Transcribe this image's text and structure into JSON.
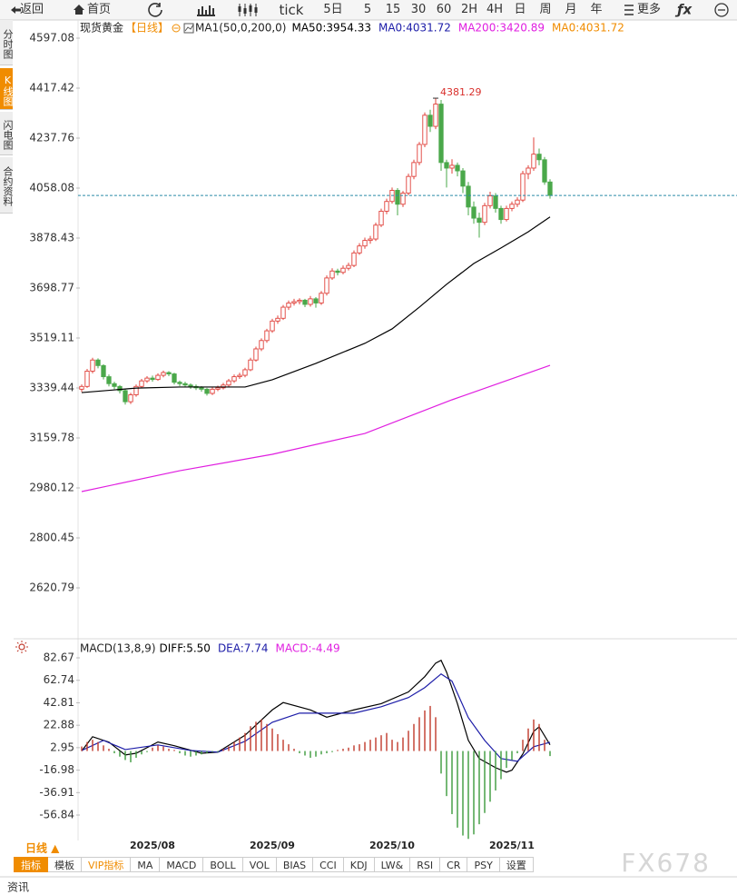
{
  "toolbar": {
    "back": "返回",
    "home": "首页",
    "periods": [
      "tick",
      "5日",
      "5",
      "15",
      "30",
      "60",
      "2H",
      "4H",
      "日",
      "周",
      "月",
      "年"
    ],
    "more": "更多"
  },
  "side_tabs": [
    "分时图",
    "K线图",
    "闪电图",
    "合约资料"
  ],
  "chart_data": [
    {
      "type": "candlestick",
      "title": "现货黄金",
      "period": "【日线】",
      "indicator": "MA1(50,0,200,0)",
      "categories": [
        null,
        null,
        null,
        null,
        null,
        null,
        null,
        null,
        null,
        null,
        null,
        null,
        null,
        "2025/08",
        null,
        null,
        null,
        null,
        null,
        null,
        null,
        null,
        null,
        null,
        null,
        null,
        null,
        null,
        null,
        null,
        null,
        null,
        null,
        null,
        null,
        "2025/09",
        null,
        null,
        null,
        null,
        null,
        null,
        null,
        null,
        null,
        null,
        null,
        null,
        null,
        null,
        null,
        null,
        null,
        null,
        null,
        null,
        null,
        "2025/10",
        null,
        null,
        null,
        null,
        null,
        null,
        null,
        null,
        null,
        null,
        null,
        null,
        null,
        null,
        null,
        null,
        null,
        null,
        null,
        null,
        null,
        "2025/11",
        null,
        null,
        null,
        null,
        null,
        null,
        null
      ],
      "ohlc": [
        [
          3335,
          3352,
          3325,
          3345
        ],
        [
          3345,
          3408,
          3340,
          3400
        ],
        [
          3400,
          3448,
          3392,
          3440
        ],
        [
          3440,
          3446,
          3410,
          3420
        ],
        [
          3420,
          3425,
          3370,
          3380
        ],
        [
          3380,
          3388,
          3345,
          3355
        ],
        [
          3355,
          3362,
          3335,
          3345
        ],
        [
          3345,
          3350,
          3320,
          3330
        ],
        [
          3330,
          3336,
          3280,
          3290
        ],
        [
          3290,
          3322,
          3282,
          3315
        ],
        [
          3315,
          3352,
          3308,
          3345
        ],
        [
          3345,
          3372,
          3338,
          3365
        ],
        [
          3365,
          3382,
          3358,
          3375
        ],
        [
          3375,
          3384,
          3362,
          3370
        ],
        [
          3370,
          3392,
          3365,
          3385
        ],
        [
          3385,
          3402,
          3378,
          3395
        ],
        [
          3395,
          3400,
          3382,
          3390
        ],
        [
          3390,
          3394,
          3352,
          3360
        ],
        [
          3360,
          3366,
          3346,
          3355
        ],
        [
          3355,
          3362,
          3342,
          3350
        ],
        [
          3350,
          3356,
          3336,
          3345
        ],
        [
          3345,
          3352,
          3332,
          3340
        ],
        [
          3340,
          3346,
          3326,
          3335
        ],
        [
          3335,
          3340,
          3312,
          3320
        ],
        [
          3320,
          3342,
          3314,
          3335
        ],
        [
          3335,
          3348,
          3328,
          3340
        ],
        [
          3340,
          3358,
          3334,
          3350
        ],
        [
          3350,
          3372,
          3344,
          3365
        ],
        [
          3365,
          3388,
          3358,
          3380
        ],
        [
          3380,
          3394,
          3372,
          3385
        ],
        [
          3385,
          3412,
          3378,
          3405
        ],
        [
          3405,
          3448,
          3400,
          3440
        ],
        [
          3440,
          3488,
          3434,
          3480
        ],
        [
          3480,
          3518,
          3472,
          3510
        ],
        [
          3510,
          3552,
          3502,
          3545
        ],
        [
          3545,
          3588,
          3538,
          3580
        ],
        [
          3580,
          3600,
          3570,
          3590
        ],
        [
          3590,
          3638,
          3584,
          3630
        ],
        [
          3630,
          3654,
          3620,
          3645
        ],
        [
          3645,
          3660,
          3636,
          3650
        ],
        [
          3650,
          3662,
          3640,
          3655
        ],
        [
          3655,
          3660,
          3630,
          3640
        ],
        [
          3640,
          3670,
          3632,
          3660
        ],
        [
          3660,
          3666,
          3628,
          3645
        ],
        [
          3645,
          3688,
          3638,
          3680
        ],
        [
          3680,
          3744,
          3672,
          3735
        ],
        [
          3735,
          3770,
          3728,
          3760
        ],
        [
          3760,
          3768,
          3744,
          3755
        ],
        [
          3755,
          3780,
          3748,
          3770
        ],
        [
          3770,
          3790,
          3762,
          3780
        ],
        [
          3780,
          3834,
          3774,
          3825
        ],
        [
          3825,
          3860,
          3818,
          3850
        ],
        [
          3850,
          3880,
          3840,
          3870
        ],
        [
          3870,
          3886,
          3858,
          3875
        ],
        [
          3875,
          3934,
          3868,
          3925
        ],
        [
          3925,
          3984,
          3918,
          3975
        ],
        [
          3975,
          4020,
          3964,
          4010
        ],
        [
          4010,
          4060,
          4002,
          4050
        ],
        [
          4050,
          4058,
          3960,
          4000
        ],
        [
          4000,
          4048,
          3990,
          4040
        ],
        [
          4040,
          4110,
          4032,
          4100
        ],
        [
          4100,
          4160,
          4090,
          4150
        ],
        [
          4150,
          4224,
          4140,
          4215
        ],
        [
          4215,
          4330,
          4205,
          4320
        ],
        [
          4320,
          4340,
          4260,
          4280
        ],
        [
          4280,
          4381.29,
          4270,
          4360
        ],
        [
          4360,
          4375,
          4120,
          4150
        ],
        [
          4150,
          4160,
          4060,
          4130
        ],
        [
          4130,
          4162,
          4110,
          4140
        ],
        [
          4140,
          4150,
          4100,
          4120
        ],
        [
          4120,
          4130,
          4040,
          4065
        ],
        [
          4065,
          4080,
          3960,
          3990
        ],
        [
          3990,
          4010,
          3930,
          3950
        ],
        [
          3950,
          3970,
          3880,
          3935
        ],
        [
          3935,
          4005,
          3925,
          3995
        ],
        [
          3995,
          4045,
          3985,
          4030
        ],
        [
          4030,
          4040,
          3970,
          3985
        ],
        [
          3985,
          3995,
          3930,
          3945
        ],
        [
          3945,
          3995,
          3938,
          3985
        ],
        [
          3985,
          4010,
          3975,
          4000
        ],
        [
          4000,
          4025,
          3990,
          4015
        ],
        [
          4015,
          4120,
          4008,
          4110
        ],
        [
          4110,
          4140,
          4090,
          4130
        ],
        [
          4130,
          4240,
          4120,
          4180
        ],
        [
          4180,
          4200,
          4140,
          4160
        ],
        [
          4160,
          4170,
          4070,
          4080
        ],
        [
          4080,
          4090,
          4020,
          4031.72
        ]
      ],
      "up_color": "#e0403a",
      "down_color": "#4aa84a",
      "series": [
        {
          "name": "MA50:3954.33",
          "color": "#000000",
          "x": [
            0,
            10,
            18,
            30,
            35,
            43,
            52,
            57,
            62,
            67,
            72,
            77,
            82,
            86
          ],
          "values": [
            3323,
            3339,
            3343,
            3343,
            3369,
            3428,
            3500,
            3552,
            3630,
            3712,
            3787,
            3843,
            3901,
            3954.33
          ]
        },
        {
          "name": "MA0:4031.72",
          "color": "#1c1ca8"
        },
        {
          "name": "MA200:3420.89",
          "color": "#e01ee0",
          "x": [
            0,
            18,
            35,
            52,
            68,
            86
          ],
          "values": [
            2967,
            3042,
            3101,
            3176,
            3297,
            3420.89
          ]
        },
        {
          "name": "MA0:4031.72",
          "color": "#f08c00"
        }
      ],
      "ylim": [
        2447.7,
        4662.4
      ],
      "yticks": [
        4597.08,
        4417.42,
        4237.76,
        4058.08,
        3878.43,
        3698.77,
        3519.11,
        3339.44,
        3159.78,
        2980.12,
        2800.45,
        2620.79
      ]
    },
    {
      "type": "macd",
      "title": "MACD(13,8,9)",
      "series": [
        {
          "name": "DIFF:5.50",
          "color": "#000000",
          "x": [
            0,
            2,
            5,
            8,
            10,
            14,
            17,
            22,
            25,
            30,
            35,
            37,
            42,
            45,
            50,
            55,
            60,
            63,
            65,
            66,
            67,
            69,
            71,
            73,
            76,
            78,
            79,
            81,
            83,
            84,
            86
          ],
          "values": [
            0,
            12.7,
            7.9,
            -3.5,
            -2,
            8,
            4.7,
            -2,
            -1,
            14,
            36.5,
            43,
            36.5,
            30,
            36.5,
            42,
            52.4,
            66,
            78,
            80.5,
            70,
            42,
            9.5,
            -6.7,
            -14.8,
            -18.8,
            -17,
            -2.7,
            17.4,
            21.5,
            5.5
          ]
        },
        {
          "name": "DEA:7.74",
          "color": "#1c1ca8",
          "x": [
            0,
            4,
            8,
            14,
            20,
            25,
            30,
            35,
            40,
            45,
            50,
            55,
            60,
            63,
            66,
            68,
            71,
            74,
            77,
            80,
            83,
            86
          ],
          "values": [
            0.5,
            9.4,
            1.3,
            5.4,
            0.5,
            -1,
            8.6,
            25.5,
            33.6,
            33.6,
            33.6,
            39.3,
            47.4,
            56.3,
            68.4,
            62,
            29.6,
            9.4,
            -6.7,
            -9.1,
            3.8,
            7.74
          ]
        },
        {
          "name": "MACD:-4.49",
          "color": "#e01ee0",
          "type": "bar",
          "up_color": "#c0392b",
          "down_color": "#3c9a3c",
          "values": [
            4,
            8,
            10,
            8,
            5,
            2,
            -2,
            -5,
            -8,
            -10,
            -6,
            -3,
            -1,
            3,
            5,
            4,
            2,
            1,
            -2,
            -4,
            -5,
            -4,
            -3,
            -2,
            -1,
            -1,
            2,
            4,
            8,
            12,
            16,
            22,
            26,
            28,
            24,
            20,
            15,
            10,
            6,
            2,
            -2,
            -4,
            -6,
            -5,
            -3,
            -2,
            -1,
            1,
            2,
            3,
            5,
            6,
            8,
            10,
            12,
            14,
            16,
            10,
            8,
            12,
            18,
            24,
            30,
            36,
            40,
            30,
            -20,
            -40,
            -56,
            -68,
            -75,
            -78,
            -74,
            -65,
            -55,
            -45,
            -35,
            -25,
            -15,
            -8,
            -2,
            10,
            20,
            28,
            24,
            10,
            -4.49
          ]
        }
      ],
      "ylim": [
        -79.4,
        98.0
      ],
      "yticks": [
        82.67,
        62.74,
        42.81,
        22.88,
        2.95,
        -16.98,
        -36.91,
        -56.84
      ]
    }
  ],
  "footer": {
    "period": "日线 ▲",
    "tabs": [
      "指标",
      "模板",
      "VIP指标",
      "MA",
      "MACD",
      "BOLL",
      "VOL",
      "BIAS",
      "CCI",
      "KDJ",
      "LW&",
      "RSI",
      "CR",
      "PSY",
      "设置"
    ],
    "news": "资讯"
  },
  "watermark": "FX678"
}
